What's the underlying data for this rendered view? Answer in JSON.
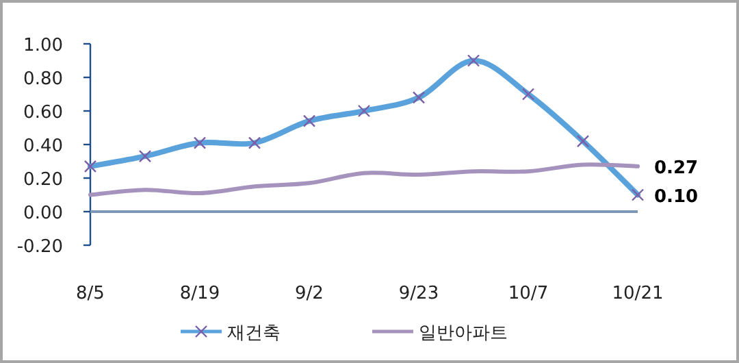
{
  "chart_data": {
    "type": "line",
    "categories": [
      "8/5",
      null,
      "8/19",
      null,
      "9/2",
      null,
      "9/23",
      null,
      "10/7",
      null,
      "10/21"
    ],
    "series": [
      {
        "name": "재건축",
        "color": "#5aa2db",
        "marker": "cross",
        "values": [
          0.27,
          0.33,
          0.41,
          0.41,
          0.54,
          0.6,
          0.68,
          0.9,
          0.7,
          0.42,
          0.1
        ]
      },
      {
        "name": "일반아파트",
        "color": "#a593bd",
        "marker": "none",
        "values": [
          0.1,
          0.13,
          0.11,
          0.15,
          0.17,
          0.23,
          0.22,
          0.24,
          0.24,
          0.28,
          0.27
        ]
      }
    ],
    "ylim": [
      -0.2,
      1.0
    ],
    "yticks": [
      {
        "value": -0.2,
        "label": "-0.20"
      },
      {
        "value": 0,
        "label": "0.00"
      },
      {
        "value": 0.2,
        "label": "0.20"
      },
      {
        "value": 0.4,
        "label": "0.40"
      },
      {
        "value": 0.6,
        "label": "0.60"
      },
      {
        "value": 0.8,
        "label": "0.80"
      },
      {
        "value": 1.0,
        "label": "1.00"
      }
    ],
    "grid": false,
    "legend": "bottom",
    "ref_lines": [
      {
        "axis": "y",
        "value": 0,
        "color": "#7f98b5"
      }
    ],
    "annotations": [
      {
        "text": "0.27",
        "x": "10/21",
        "y": 0.27
      },
      {
        "text": "0.10",
        "x": "10/21",
        "y": 0.1
      }
    ]
  }
}
